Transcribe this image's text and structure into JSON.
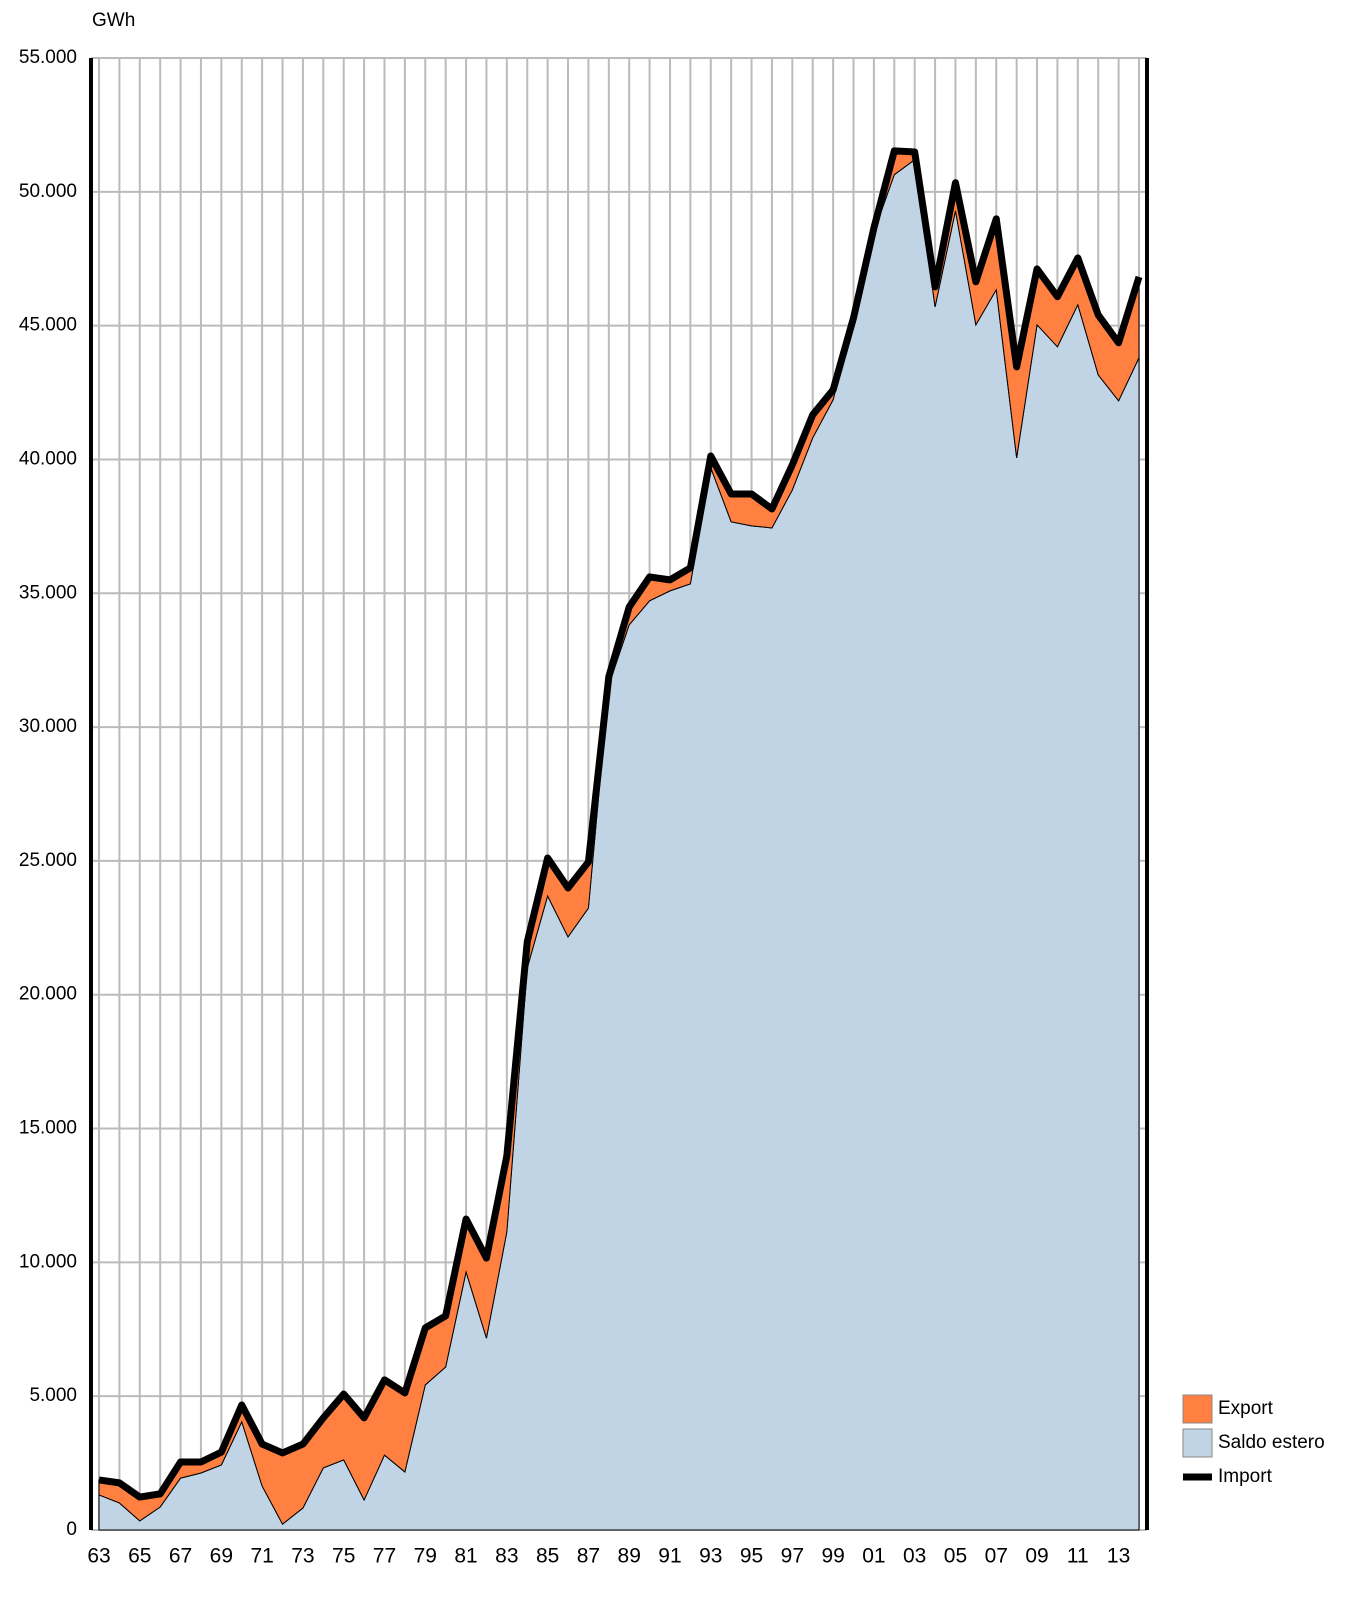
{
  "chart_data": {
    "type": "area",
    "y_label": "GWh",
    "categories": [
      "63",
      null,
      "65",
      null,
      "67",
      null,
      "69",
      null,
      "71",
      null,
      "73",
      null,
      "75",
      null,
      "77",
      null,
      "79",
      null,
      "81",
      null,
      "83",
      null,
      "85",
      null,
      "87",
      null,
      "89",
      null,
      "91",
      null,
      "93",
      null,
      "95",
      null,
      "97",
      null,
      "99",
      null,
      "01",
      null,
      "03",
      null,
      "05",
      null,
      "07",
      null,
      "09",
      null,
      "11",
      null,
      "13",
      null
    ],
    "series": [
      {
        "name": "Export",
        "type": "area",
        "color": "#ff8040",
        "values": [
          560,
          750,
          890,
          490,
          600,
          410,
          480,
          630,
          1570,
          2660,
          2390,
          1870,
          2460,
          3070,
          2810,
          2950,
          2130,
          1910,
          1980,
          2990,
          2840,
          970,
          1420,
          1830,
          1720,
          300,
          670,
          890,
          410,
          600,
          440,
          1040,
          1190,
          710,
          940,
          860,
          370,
          70,
          150,
          890,
          290,
          750,
          1050,
          1610,
          2650,
          3400,
          2090,
          1870,
          1750,
          2240,
          2170,
          3020
        ]
      },
      {
        "name": "Saldo estero",
        "type": "area",
        "color": "#c0d4e6",
        "values": [
          1310,
          1010,
          340,
          860,
          1940,
          2130,
          2430,
          4040,
          1640,
          220,
          820,
          2320,
          2620,
          1120,
          2800,
          2170,
          5420,
          6090,
          9640,
          7170,
          11140,
          21000,
          23690,
          22160,
          23240,
          31580,
          33820,
          34720,
          35090,
          35350,
          39690,
          37670,
          37520,
          37440,
          38860,
          40810,
          42230,
          45220,
          48500,
          50640,
          51200,
          45700,
          49290,
          45030,
          46340,
          40060,
          45030,
          44210,
          45780,
          43160,
          42190,
          43800
        ]
      },
      {
        "name": "Import",
        "type": "line",
        "color": "#000000",
        "values": [
          1870,
          1760,
          1230,
          1350,
          2540,
          2540,
          2910,
          4670,
          3210,
          2880,
          3210,
          4190,
          5080,
          4190,
          5610,
          5120,
          7550,
          8000,
          11620,
          10160,
          13980,
          21970,
          25110,
          23990,
          24960,
          31880,
          34490,
          35610,
          35500,
          35950,
          40130,
          38710,
          38710,
          38150,
          39800,
          41670,
          42600,
          45290,
          48650,
          51530,
          51490,
          46450,
          50340,
          46640,
          48990,
          43460,
          47120,
          46080,
          47530,
          45400,
          44360,
          46820
        ]
      }
    ],
    "ylim": [
      0,
      55000
    ],
    "yticks": [
      0,
      {
        "value": 5000,
        "label": "5.000"
      },
      {
        "value": 10000,
        "label": "10.000"
      },
      {
        "value": 15000,
        "label": "15.000"
      },
      {
        "value": 20000,
        "label": "20.000"
      },
      {
        "value": 25000,
        "label": "25.000"
      },
      {
        "value": 30000,
        "label": "30.000"
      },
      {
        "value": 35000,
        "label": "35.000"
      },
      {
        "value": 40000,
        "label": "40.000"
      },
      {
        "value": 45000,
        "label": "45.000"
      },
      {
        "value": 50000,
        "label": "50.000"
      },
      {
        "value": 55000,
        "label": "55.000"
      }
    ],
    "grid": true,
    "legend": "lower right"
  }
}
